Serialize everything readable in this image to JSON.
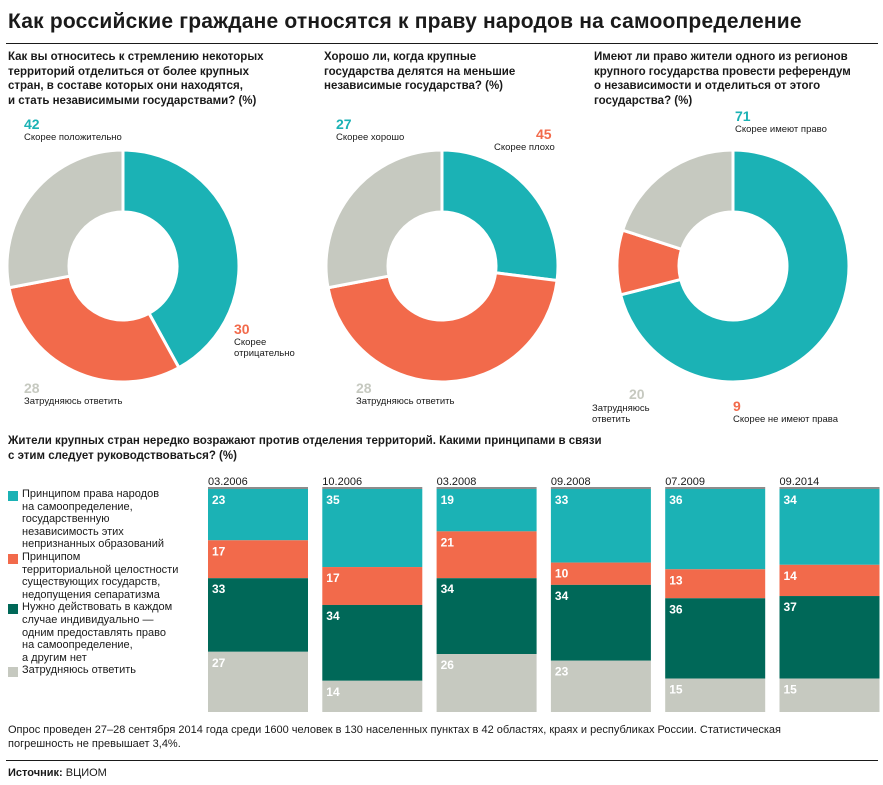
{
  "title": "Как российские граждане относятся к праву народов на самоопределение",
  "colors": {
    "teal": "#1bb2b5",
    "orange": "#f26a4b",
    "grey": "#c6c9c0",
    "dark": "#006858"
  },
  "chart_data": [
    {
      "type": "pie",
      "title": "Как вы относитесь к стремлению некоторых территорий отделиться от более крупных стран, в составе которых они находятся, и стать независимыми государствами? (%)",
      "title_lines": [
        "Как вы относитесь к стремлению некоторых",
        "территорий отделиться от более крупных",
        "стран, в составе которых они находятся,",
        "и стать независимыми государствами? (%)"
      ],
      "slices": [
        {
          "label": "Скорее положительно",
          "value": 42,
          "color": "#1bb2b5"
        },
        {
          "label": "Скорее отрицательно",
          "label_lines": [
            "Скорее",
            "отрицательно"
          ],
          "value": 30,
          "color": "#f26a4b"
        },
        {
          "label": "Затрудняюсь ответить",
          "value": 28,
          "color": "#c6c9c0"
        }
      ]
    },
    {
      "type": "pie",
      "title": "Хорошо ли, когда крупные государства делятся на меньшие независимые государства? (%)",
      "title_lines": [
        "Хорошо ли, когда крупные",
        "государства делятся на меньшие",
        "независимые государства? (%)"
      ],
      "slices": [
        {
          "label": "Скорее хорошо",
          "value": 27,
          "color": "#1bb2b5"
        },
        {
          "label": "Скорее плохо",
          "value": 45,
          "color": "#f26a4b"
        },
        {
          "label": "Затрудняюсь ответить",
          "value": 28,
          "color": "#c6c9c0"
        }
      ]
    },
    {
      "type": "pie",
      "title": "Имеют ли право жители одного из регионов крупного государства провести референдум о независимости и отделиться от этого государства? (%)",
      "title_lines": [
        "Имеют ли право жители одного из регионов",
        "крупного государства провести референдум",
        "о независимости и отделиться от этого",
        "государства? (%)"
      ],
      "slices": [
        {
          "label": "Скорее имеют право",
          "value": 71,
          "color": "#1bb2b5"
        },
        {
          "label": "Скорее не имеют права",
          "value": 9,
          "color": "#f26a4b"
        },
        {
          "label": "Затрудняюсь ответить",
          "label_lines": [
            "Затрудняюсь",
            "ответить"
          ],
          "value": 20,
          "color": "#c6c9c0"
        }
      ]
    },
    {
      "type": "bar",
      "stacked": true,
      "title": "Жители крупных стран нередко возражают против отделения территорий. Какими принципами в связи с этим следует руководствоваться? (%)",
      "title_lines": [
        "Жители крупных стран нередко возражают против отделения территорий. Какими принципами в связи",
        "с этим следует руководствоваться? (%)"
      ],
      "categories": [
        "03.2006",
        "10.2006",
        "03.2008",
        "09.2008",
        "07.2009",
        "09.2014"
      ],
      "series": [
        {
          "name": "Принципом права народов на самоопределение, государственную независимость этих непризнанных образований",
          "name_lines": [
            "Принципом права народов",
            "на самоопределение,",
            "государственную",
            "независимость этих",
            "непризнанных образований"
          ],
          "color": "#1bb2b5",
          "values": [
            23,
            35,
            19,
            33,
            36,
            34
          ]
        },
        {
          "name": "Принципом территориальной целостности существующих государств, недопущения сепаратизма",
          "name_lines": [
            "Принципом",
            "территориальной целостности",
            "существующих государств,",
            "недопущения сепаратизма"
          ],
          "color": "#f26a4b",
          "values": [
            17,
            17,
            21,
            10,
            13,
            14
          ]
        },
        {
          "name": "Нужно действовать в каждом случае индивидуально — одним предоставлять право на самоопределение, а другим нет",
          "name_lines": [
            "Нужно действовать в каждом",
            "случае индивидуально —",
            "одним предоставлять право",
            "на самоопределение,",
            "а другим нет"
          ],
          "color": "#006858",
          "values": [
            33,
            34,
            34,
            34,
            36,
            37
          ]
        },
        {
          "name": "Затрудняюсь ответить",
          "name_lines": [
            "Затрудняюсь ответить"
          ],
          "color": "#c6c9c0",
          "values": [
            27,
            14,
            26,
            23,
            15,
            15
          ]
        }
      ]
    }
  ],
  "note_lines": [
    "Опрос проведен 27–28 сентября 2014 года среди 1600 человек в 130 населенных пунктах в 42 областях, краях и республиках России. Статистическая",
    "погрешность не превышает 3,4%."
  ],
  "source_label": "Источник:",
  "source_value": " ВЦИОМ"
}
